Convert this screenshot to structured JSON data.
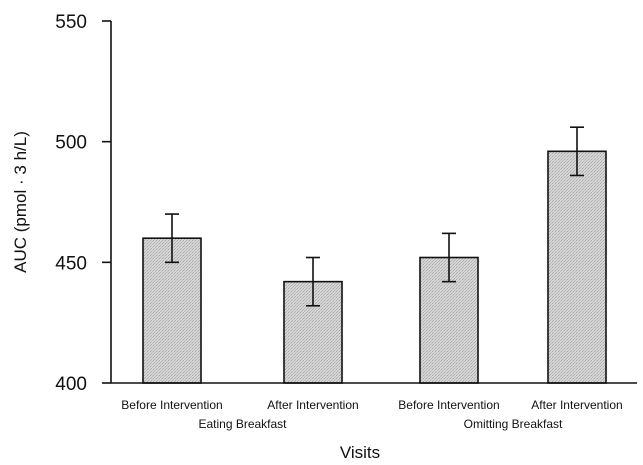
{
  "chart_data": {
    "type": "bar",
    "xlabel": "Visits",
    "ylabel": "AUC (pmol · 3 h/L)",
    "ylim": [
      400,
      550
    ],
    "yticks": [
      400,
      450,
      500,
      550
    ],
    "categories": [
      "Before Intervention",
      "After Intervention",
      "Before Intervention",
      "After Intervention"
    ],
    "groups": [
      {
        "label": "Eating Breakfast",
        "categories": [
          0,
          1
        ]
      },
      {
        "label": "Omitting Breakfast",
        "categories": [
          2,
          3
        ]
      }
    ],
    "values": [
      460,
      442,
      452,
      496
    ],
    "errors": [
      10,
      10,
      10,
      10
    ],
    "bar_fill": "#d4d4d4",
    "grid": false,
    "legend": "none"
  }
}
